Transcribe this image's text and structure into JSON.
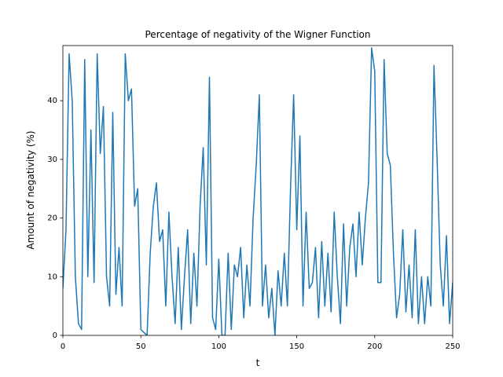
{
  "chart_data": {
    "type": "line",
    "title": "Percentage of negativity of the Wigner Function",
    "x_label": "t",
    "y_label": "Amount of negativity (%)",
    "x": [
      0,
      2,
      4,
      6,
      8,
      10,
      12,
      14,
      16,
      18,
      20,
      22,
      24,
      26,
      28,
      30,
      32,
      34,
      36,
      38,
      40,
      42,
      44,
      46,
      48,
      50,
      52,
      54,
      56,
      58,
      60,
      62,
      64,
      66,
      68,
      70,
      72,
      74,
      76,
      78,
      80,
      82,
      84,
      86,
      88,
      90,
      92,
      94,
      96,
      98,
      100,
      102,
      104,
      106,
      108,
      110,
      112,
      114,
      116,
      118,
      120,
      122,
      124,
      126,
      128,
      130,
      132,
      134,
      136,
      138,
      140,
      142,
      144,
      146,
      148,
      150,
      152,
      154,
      156,
      158,
      160,
      162,
      164,
      166,
      168,
      170,
      172,
      174,
      176,
      178,
      180,
      182,
      184,
      186,
      188,
      190,
      192,
      194,
      196,
      198,
      200,
      202,
      204,
      206,
      208,
      210,
      212,
      214,
      216,
      218,
      220,
      222,
      224,
      226,
      228,
      230,
      232,
      234,
      236,
      238,
      240,
      242,
      244,
      246,
      248,
      250
    ],
    "series": [
      {
        "color": "#1f77b4",
        "values": [
          8,
          18,
          48,
          40,
          10,
          2,
          1,
          47,
          10,
          35,
          9,
          48,
          31,
          39,
          10,
          5,
          38,
          7,
          15,
          5,
          48,
          40,
          42,
          22,
          25,
          1,
          0.5,
          0,
          14,
          22,
          26,
          16,
          18,
          5,
          21,
          10,
          2,
          15,
          1,
          10,
          18,
          2,
          14,
          5,
          22,
          32,
          12,
          44,
          3,
          1,
          13,
          0,
          0,
          14,
          1,
          12,
          10,
          15,
          3,
          12,
          5,
          20,
          29,
          41,
          5,
          12,
          3,
          8,
          0,
          11,
          5,
          14,
          5,
          25,
          41,
          18,
          34,
          5,
          21,
          8,
          9,
          15,
          3,
          16,
          5,
          14,
          4,
          21,
          10,
          2,
          19,
          5,
          15,
          19,
          10,
          21,
          12,
          20,
          26,
          49,
          45,
          9,
          9,
          47,
          31,
          29,
          14,
          3,
          7,
          18,
          4,
          12,
          3,
          18,
          2,
          10,
          2,
          10,
          5,
          46,
          30,
          12,
          5,
          17,
          2,
          9
        ]
      }
    ],
    "xlim": [
      0,
      250
    ],
    "xticks": [
      0,
      50,
      100,
      150,
      200,
      250
    ],
    "ylim": [
      0,
      49.4
    ],
    "yticks": [
      0,
      10,
      20,
      30,
      40
    ]
  }
}
